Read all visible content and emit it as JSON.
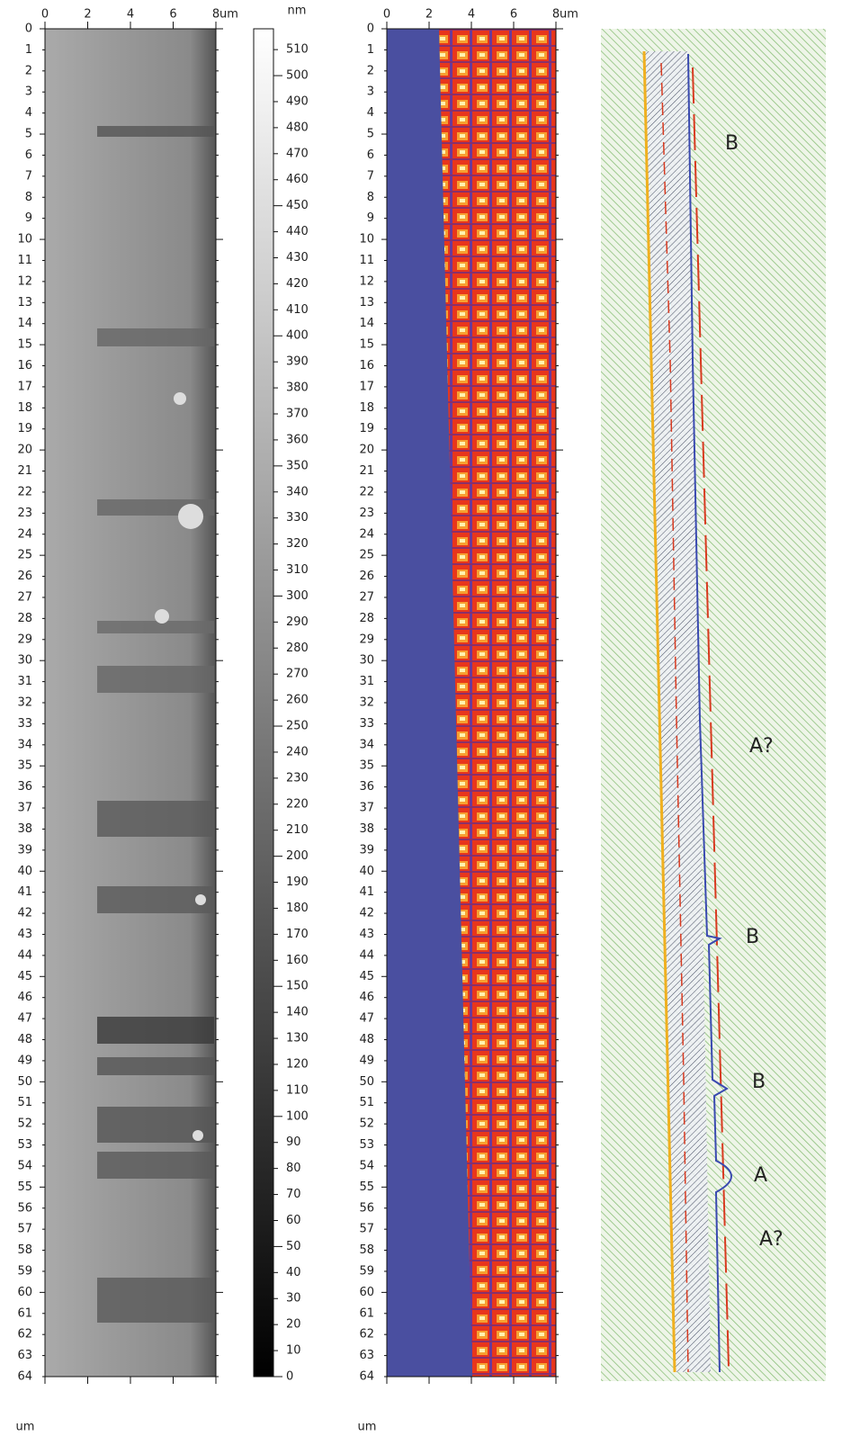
{
  "panel_a": {
    "x_unit": "um",
    "y_unit": "um",
    "xlim": [
      0,
      8
    ],
    "ylim": [
      0,
      64
    ],
    "xticks": [
      0,
      2,
      4,
      6,
      8
    ],
    "yticks": [
      0,
      1,
      2,
      3,
      4,
      5,
      6,
      7,
      8,
      9,
      10,
      11,
      12,
      13,
      14,
      15,
      16,
      17,
      18,
      19,
      20,
      21,
      22,
      23,
      24,
      25,
      26,
      27,
      28,
      29,
      30,
      31,
      32,
      33,
      34,
      35,
      36,
      37,
      38,
      39,
      40,
      41,
      42,
      43,
      44,
      45,
      46,
      47,
      48,
      49,
      50,
      51,
      52,
      53,
      54,
      55,
      56,
      57,
      58,
      59,
      60,
      61,
      62,
      63,
      64
    ]
  },
  "colorbar": {
    "unit": "nm",
    "lim": [
      0,
      518
    ],
    "ticks": [
      0,
      10,
      20,
      30,
      40,
      50,
      60,
      70,
      80,
      90,
      100,
      110,
      120,
      130,
      140,
      150,
      160,
      170,
      180,
      190,
      200,
      210,
      220,
      230,
      240,
      250,
      260,
      270,
      280,
      290,
      300,
      310,
      320,
      330,
      340,
      350,
      360,
      370,
      380,
      390,
      400,
      410,
      420,
      430,
      440,
      450,
      460,
      470,
      480,
      490,
      500,
      510
    ]
  },
  "panel_b": {
    "x_unit": "um",
    "y_unit": "um",
    "xlim": [
      0,
      8
    ],
    "ylim": [
      0,
      64
    ],
    "xticks": [
      0,
      2,
      4,
      6,
      8
    ],
    "yticks": [
      0,
      1,
      2,
      3,
      4,
      5,
      6,
      7,
      8,
      9,
      10,
      11,
      12,
      13,
      14,
      15,
      16,
      17,
      18,
      19,
      20,
      21,
      22,
      23,
      24,
      25,
      26,
      27,
      28,
      29,
      30,
      31,
      32,
      33,
      34,
      35,
      36,
      37,
      38,
      39,
      40,
      41,
      42,
      43,
      44,
      45,
      46,
      47,
      48,
      49,
      50,
      51,
      52,
      53,
      54,
      55,
      56,
      57,
      58,
      59,
      60,
      61,
      62,
      63,
      64
    ]
  },
  "panel_c": {
    "annotations": [
      "B",
      "A?",
      "B",
      "B",
      "A",
      "A?"
    ]
  }
}
